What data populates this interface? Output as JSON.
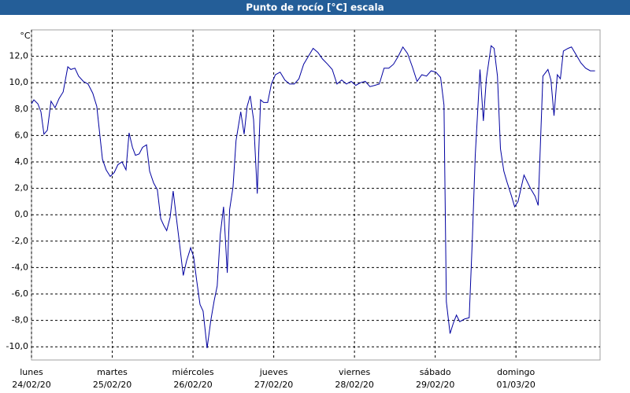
{
  "chart_data": {
    "type": "line",
    "title": "Punto de rocío [°C] escala",
    "y_unit": "°C",
    "x": [
      0.0,
      0.7,
      1.9,
      2.8,
      3.7,
      4.7,
      5.8,
      7.0,
      8.2,
      9.4,
      10.8,
      11.7,
      12.9,
      14.0,
      15.4,
      16.8,
      18.2,
      19.4,
      21.1,
      22.2,
      23.4,
      24.6,
      25.7,
      26.9,
      28.1,
      29.0,
      30.0,
      30.9,
      32.0,
      33.0,
      34.2,
      35.1,
      36.3,
      37.4,
      38.4,
      39.3,
      40.2,
      41.2,
      42.1,
      43.0,
      44.0,
      45.1,
      46.1,
      47.3,
      48.2,
      49.1,
      50.1,
      51.0,
      52.2,
      53.3,
      54.3,
      55.2,
      56.1,
      57.1,
      58.2,
      58.9,
      59.9,
      60.8,
      62.2,
      63.2,
      64.1,
      65.0,
      66.0,
      67.1,
      68.1,
      69.0,
      70.2,
      71.3,
      72.5,
      73.9,
      75.3,
      76.7,
      78.1,
      79.5,
      80.9,
      82.3,
      83.7,
      85.1,
      86.5,
      88.0,
      89.4,
      90.8,
      92.2,
      93.6,
      95.0,
      96.4,
      97.8,
      99.2,
      100.6,
      102.0,
      103.4,
      104.8,
      106.2,
      107.6,
      109.0,
      110.4,
      111.8,
      113.2,
      114.6,
      116.0,
      117.4,
      118.8,
      120.2,
      121.6,
      122.6,
      123.3,
      124.4,
      125.4,
      126.3,
      127.3,
      128.7,
      130.1,
      131.0,
      131.9,
      133.3,
      134.3,
      135.2,
      136.6,
      137.5,
      138.5,
      139.4,
      140.4,
      141.3,
      142.7,
      143.6,
      144.6,
      146.4,
      148.3,
      149.7,
      150.6,
      152.0,
      153.5,
      154.4,
      155.3,
      156.3,
      157.2,
      158.1,
      159.5,
      160.5,
      161.9,
      163.3,
      164.7,
      166.1,
      167.5
    ],
    "series": [
      {
        "name": "Punto de rocío",
        "color": "#0000a0",
        "values": [
          8.4,
          8.7,
          8.4,
          7.8,
          6.1,
          6.4,
          8.6,
          8.1,
          8.8,
          9.3,
          11.2,
          11.0,
          11.1,
          10.5,
          10.1,
          9.9,
          9.2,
          8.2,
          4.2,
          3.4,
          2.9,
          3.2,
          3.8,
          4.0,
          3.4,
          6.2,
          5.1,
          4.5,
          4.6,
          5.1,
          5.3,
          3.3,
          2.4,
          1.9,
          -0.3,
          -0.8,
          -1.2,
          -0.2,
          1.8,
          -0.1,
          -2.2,
          -4.6,
          -3.5,
          -2.5,
          -3.2,
          -5.0,
          -6.8,
          -7.3,
          -10.1,
          -8.0,
          -6.5,
          -5.4,
          -1.5,
          0.6,
          -4.4,
          0.4,
          2.1,
          5.6,
          7.8,
          6.1,
          8.2,
          9.0,
          7.2,
          1.6,
          8.7,
          8.5,
          8.5,
          9.9,
          10.6,
          10.8,
          10.2,
          9.9,
          9.9,
          10.3,
          11.4,
          12.0,
          12.6,
          12.3,
          11.8,
          11.4,
          11.0,
          9.9,
          10.2,
          9.9,
          10.1,
          9.8,
          10.0,
          10.1,
          9.7,
          9.8,
          9.9,
          11.1,
          11.1,
          11.4,
          12.0,
          12.7,
          12.2,
          11.2,
          10.1,
          10.6,
          10.5,
          10.9,
          10.8,
          10.4,
          8.3,
          -6.6,
          -9.0,
          -8.2,
          -7.6,
          -8.1,
          -7.9,
          -7.8,
          -2.0,
          4.5,
          11.0,
          7.1,
          10.3,
          12.8,
          12.6,
          10.5,
          5.0,
          3.3,
          2.5,
          1.4,
          0.6,
          1.0,
          3.0,
          2.0,
          1.4,
          0.7,
          10.5,
          11.0,
          10.2,
          7.5,
          10.6,
          10.3,
          12.4,
          12.6,
          12.7,
          12.1,
          11.5,
          11.1,
          10.9,
          10.9
        ]
      }
    ],
    "xlim": [
      0,
      169
    ],
    "xticks": [
      {
        "value": 0,
        "label": "lunes"
      },
      {
        "value": 24,
        "label": "martes"
      },
      {
        "value": 48,
        "label": "miércoles"
      },
      {
        "value": 72,
        "label": "jueves"
      },
      {
        "value": 96,
        "label": "viernes"
      },
      {
        "value": 120,
        "label": "sábado"
      },
      {
        "value": 144,
        "label": "domingo"
      }
    ],
    "xtick_dates": [
      "24/02/20",
      "25/02/20",
      "26/02/20",
      "27/02/20",
      "28/02/20",
      "29/02/20",
      "01/03/20"
    ],
    "ylim": [
      -11,
      14
    ],
    "yticks": [
      {
        "value": -10,
        "label": "-10,0"
      },
      {
        "value": -8,
        "label": "-8,0"
      },
      {
        "value": -6,
        "label": "-6,0"
      },
      {
        "value": -4,
        "label": "-4,0"
      },
      {
        "value": -2,
        "label": "-2,0"
      },
      {
        "value": 0,
        "label": "0,0"
      },
      {
        "value": 2,
        "label": "2,0"
      },
      {
        "value": 4,
        "label": "4,0"
      },
      {
        "value": 6,
        "label": "6,0"
      },
      {
        "value": 8,
        "label": "8,0"
      },
      {
        "value": 10,
        "label": "10,0"
      },
      {
        "value": 12,
        "label": "12,0"
      }
    ],
    "grid": true
  }
}
